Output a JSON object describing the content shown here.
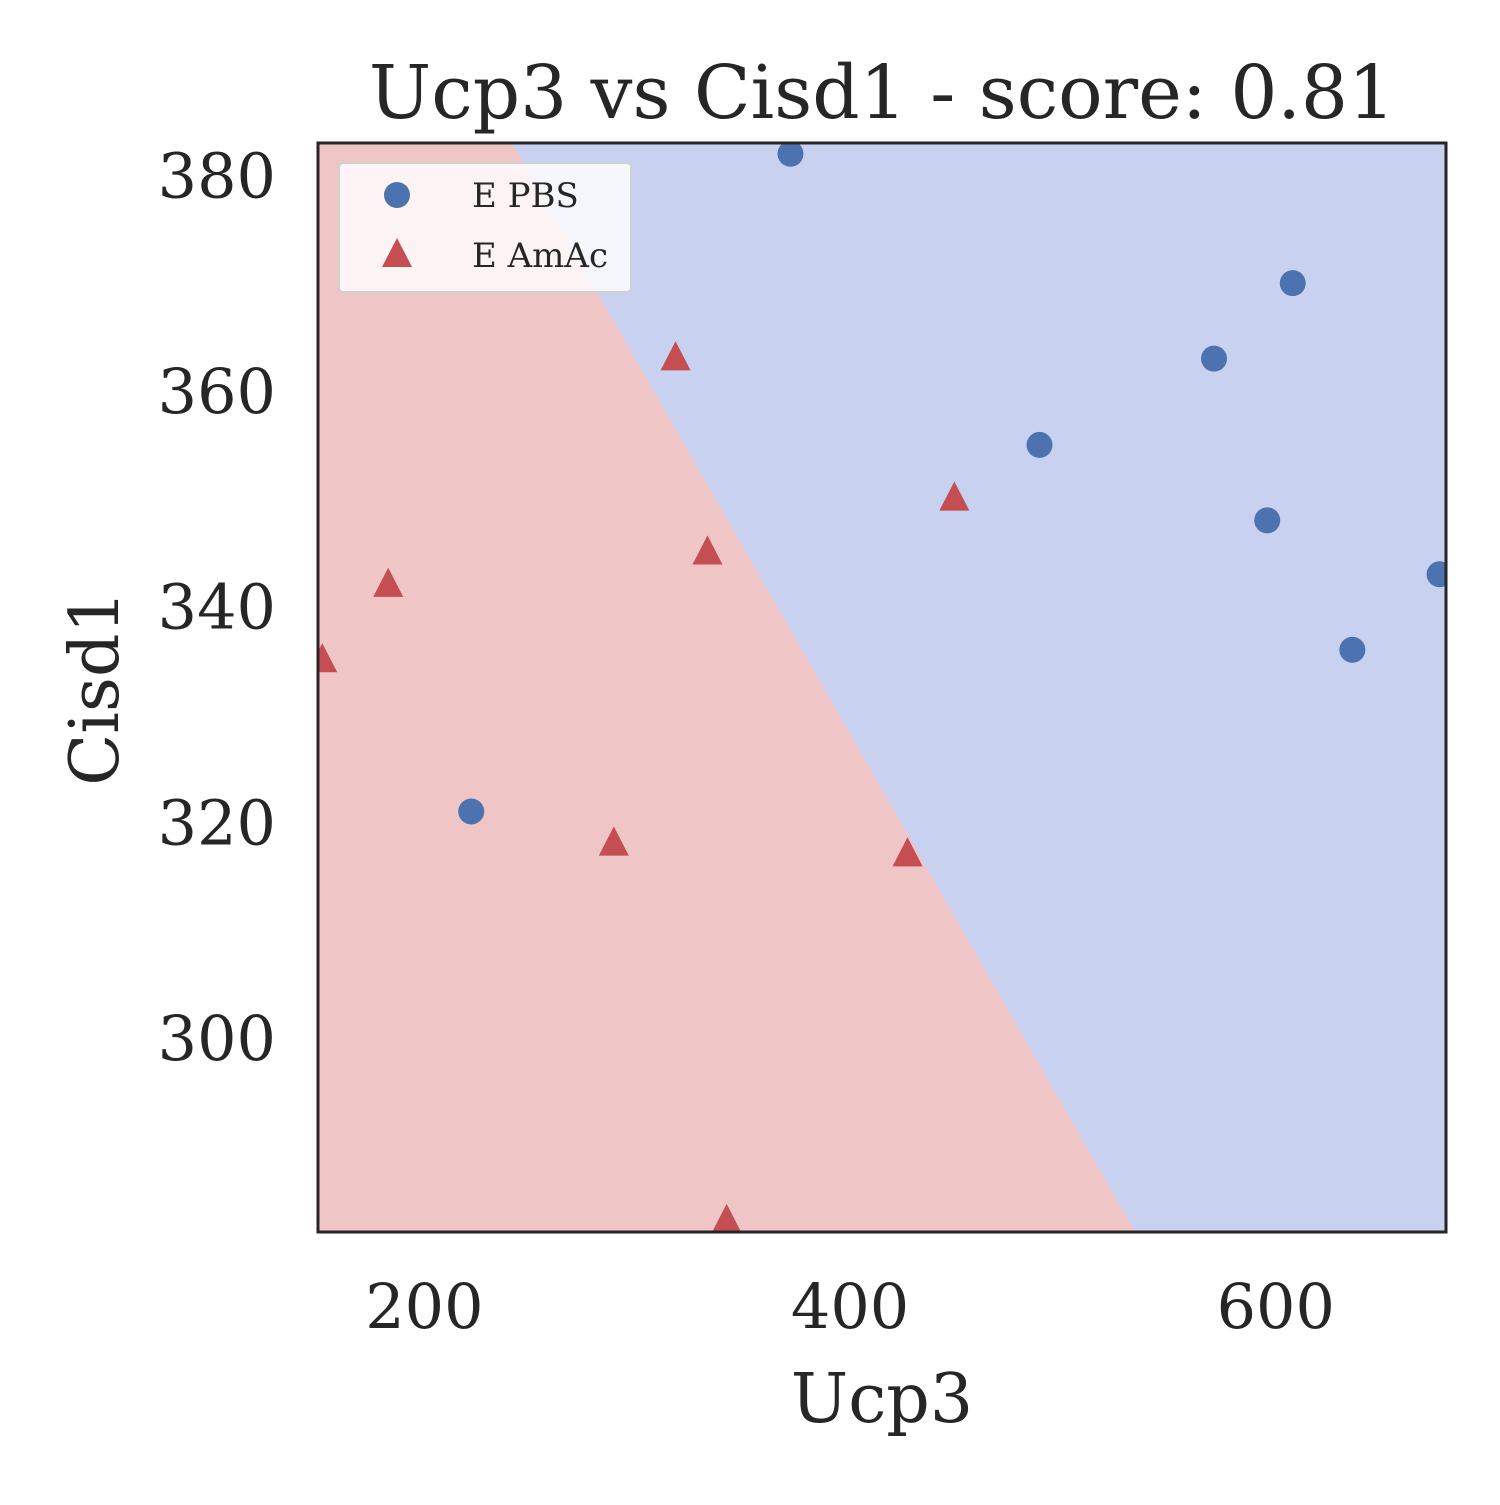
{
  "chart_data": {
    "type": "scatter",
    "title": "Ucp3 vs Cisd1 - score: 0.81",
    "xlabel": "Ucp3",
    "ylabel": "Cisd1",
    "xlim": [
      150,
      680
    ],
    "ylim": [
      282,
      383
    ],
    "xticks": [
      200,
      400,
      600
    ],
    "yticks": [
      300,
      320,
      340,
      360,
      380
    ],
    "grid": false,
    "legend_position": "upper-left",
    "decision_regions": {
      "boundary": [
        [
          241,
          383
        ],
        [
          534,
          282
        ]
      ],
      "colors": {
        "E AmAc": "#efc5c5",
        "E PBS": "#c9d1f1"
      }
    },
    "series": [
      {
        "name": "E PBS",
        "marker": "circle",
        "color": "#4c72b0",
        "points": [
          [
            372,
            382
          ],
          [
            608,
            370
          ],
          [
            571,
            363
          ],
          [
            489,
            355
          ],
          [
            596,
            348
          ],
          [
            677,
            343
          ],
          [
            636,
            336
          ],
          [
            222,
            321
          ]
        ]
      },
      {
        "name": "E AmAc",
        "marker": "triangle",
        "color": "#c44e52",
        "points": [
          [
            318,
            363
          ],
          [
            449,
            350
          ],
          [
            333,
            345
          ],
          [
            183,
            342
          ],
          [
            152,
            335
          ],
          [
            289,
            318
          ],
          [
            427,
            317
          ],
          [
            342,
            283
          ]
        ]
      }
    ]
  }
}
